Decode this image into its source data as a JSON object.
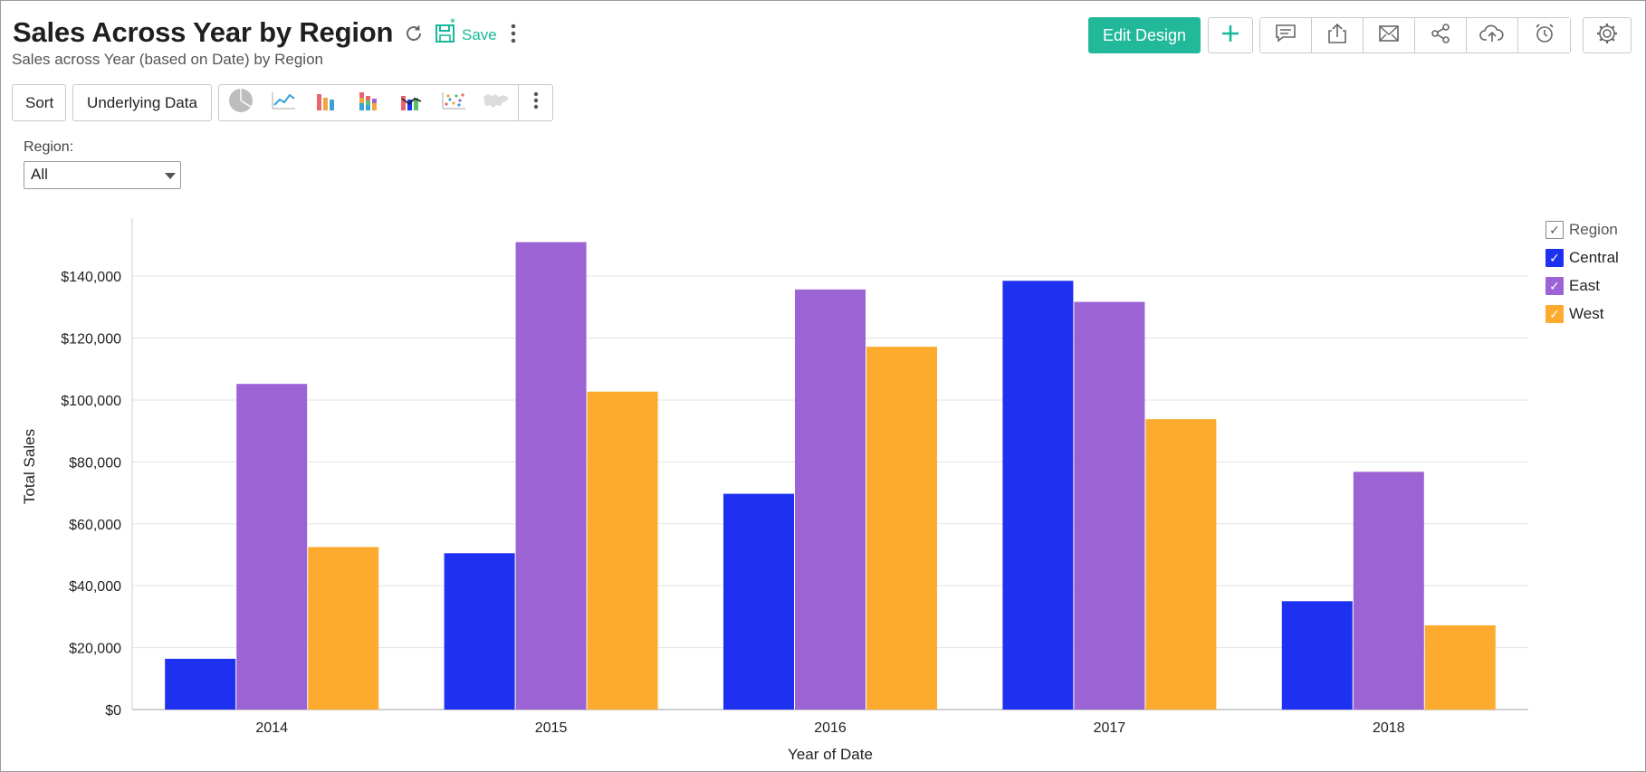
{
  "header": {
    "title": "Sales Across Year by Region",
    "subtitle": "Sales across Year (based on Date) by Region",
    "save_label": "Save",
    "edit_design_label": "Edit Design",
    "icons": [
      "refresh-icon",
      "save-icon",
      "more-icon",
      "plus-icon",
      "comment-icon",
      "export-icon",
      "email-icon",
      "share-icon",
      "cloud-upload-icon",
      "alarm-icon",
      "gear-icon"
    ]
  },
  "toolbar": {
    "sort_label": "Sort",
    "underlying_data_label": "Underlying Data",
    "chart_type_icons": [
      "pie-chart-icon",
      "line-chart-icon",
      "bar-chart-icon",
      "stacked-bar-chart-icon",
      "combination-chart-icon",
      "scatter-chart-icon",
      "map-chart-icon"
    ]
  },
  "filter": {
    "label": "Region:",
    "selected": "All"
  },
  "legend": {
    "title": "Region",
    "items": [
      {
        "label": "Central",
        "color": "#1e31f0"
      },
      {
        "label": "East",
        "color": "#9b63d4"
      },
      {
        "label": "West",
        "color": "#fdab2e"
      }
    ]
  },
  "colors": {
    "accent": "#22b99a",
    "central": "#1e31f0",
    "east": "#9b63d4",
    "west": "#fdab2e"
  },
  "chart_data": {
    "type": "bar",
    "xlabel": "Year of Date",
    "ylabel": "Total Sales",
    "ylim": [
      0,
      157000
    ],
    "yticks": [
      0,
      20000,
      40000,
      60000,
      80000,
      100000,
      120000,
      140000
    ],
    "ytick_labels": [
      "$0",
      "$20,000",
      "$40,000",
      "$60,000",
      "$80,000",
      "$100,000",
      "$120,000",
      "$140,000"
    ],
    "categories": [
      "2014",
      "2015",
      "2016",
      "2017",
      "2018"
    ],
    "series": [
      {
        "name": "Central",
        "color": "#1e31f0",
        "values": [
          16400,
          50500,
          69700,
          138500,
          35000
        ]
      },
      {
        "name": "East",
        "color": "#9b63d4",
        "values": [
          105200,
          151000,
          135700,
          131700,
          76800
        ]
      },
      {
        "name": "West",
        "color": "#fdab2e",
        "values": [
          52500,
          102700,
          117200,
          93800,
          27200
        ]
      }
    ],
    "grid": true,
    "legend_position": "top-right"
  }
}
